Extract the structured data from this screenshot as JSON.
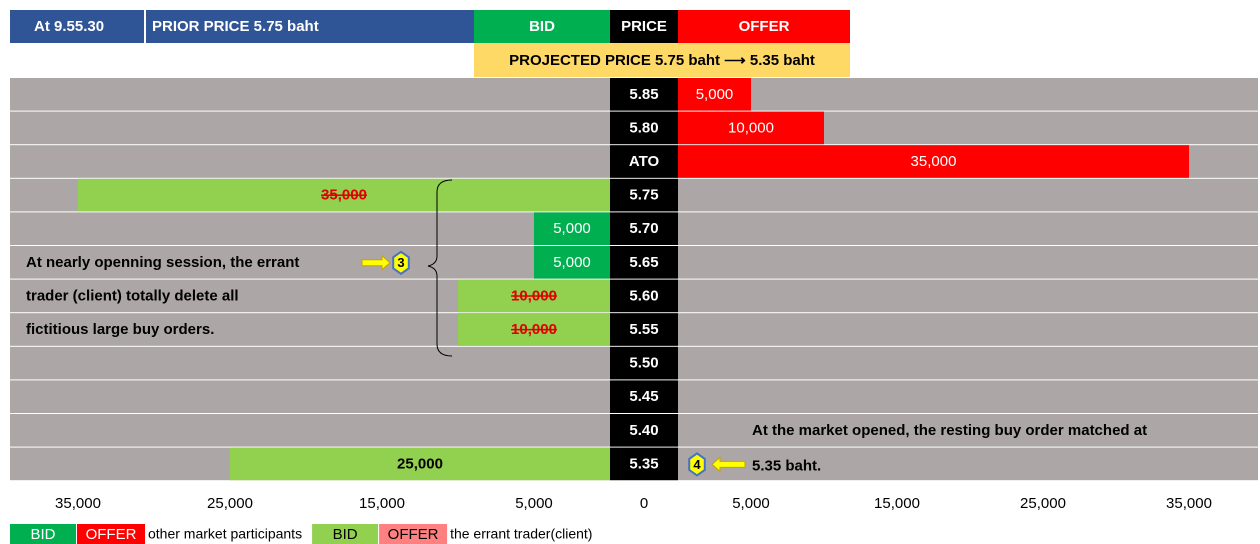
{
  "chart_data": {
    "type": "bar",
    "header": {
      "time": "At 9.55.30",
      "prior": "PRIOR PRICE 5.75 baht",
      "bid": "BID",
      "price": "PRICE",
      "offer": "OFFER",
      "projected": "PROJECTED PRICE 5.75 baht ⟶ 5.35 baht"
    },
    "categories": [
      "5.85",
      "5.80",
      "ATO",
      "5.75",
      "5.70",
      "5.65",
      "5.60",
      "5.55",
      "5.50",
      "5.45",
      "5.40",
      "5.35"
    ],
    "series": [
      {
        "name": "other market participants",
        "side": "bid",
        "color": "#00b050",
        "values": [
          null,
          null,
          null,
          null,
          5000,
          5000,
          null,
          null,
          null,
          null,
          null,
          null
        ],
        "value_labels": [
          null,
          null,
          null,
          null,
          "5,000",
          "5,000",
          null,
          null,
          null,
          null,
          null,
          null
        ]
      },
      {
        "name": "the errant trader(client)",
        "side": "bid",
        "color": "#92d050",
        "values": [
          null,
          null,
          null,
          35000,
          null,
          null,
          10000,
          10000,
          null,
          null,
          null,
          25000
        ],
        "value_labels": [
          null,
          null,
          null,
          "35,000",
          null,
          null,
          "10,000",
          "10,000",
          null,
          null,
          null,
          "25,000"
        ],
        "struck": [
          false,
          false,
          false,
          true,
          false,
          false,
          true,
          true,
          false,
          false,
          false,
          false
        ]
      },
      {
        "name": "other market participants",
        "side": "offer",
        "color": "#ff0000",
        "values": [
          5000,
          10000,
          35000,
          null,
          null,
          null,
          null,
          null,
          null,
          null,
          null,
          null
        ],
        "value_labels": [
          "5,000",
          "10,000",
          "35,000",
          null,
          null,
          null,
          null,
          null,
          null,
          null,
          null,
          null
        ]
      }
    ],
    "xlim": [
      0,
      40000
    ],
    "bid_xticks": [
      {
        "value": 35000,
        "label": "35,000"
      },
      {
        "value": 25000,
        "label": "25,000"
      },
      {
        "value": 15000,
        "label": "15,000"
      },
      {
        "value": 5000,
        "label": "5,000"
      }
    ],
    "origin_tick": 0,
    "offer_xticks": [
      {
        "value": 5000,
        "label": "5,000"
      },
      {
        "value": 15000,
        "label": "15,000"
      },
      {
        "value": 25000,
        "label": "25,000"
      },
      {
        "value": 35000,
        "label": "35,000"
      }
    ],
    "annotations": {
      "left": [
        "At nearly openning session, the errant",
        "trader (client) totally delete all",
        "fictitious large buy orders."
      ],
      "left_marker": "3",
      "right": [
        "At the market opened, the resting buy order matched at",
        "5.35 baht."
      ],
      "right_marker": "4"
    },
    "legend": [
      {
        "label": "BID",
        "color": "#00b050"
      },
      {
        "label": "OFFER",
        "color": "#ff0000"
      },
      {
        "text": "other market participants"
      },
      {
        "label": "BID",
        "color": "#92d050"
      },
      {
        "label": "OFFER",
        "color": "#ff8080"
      },
      {
        "text": "the errant trader(client)"
      }
    ]
  }
}
